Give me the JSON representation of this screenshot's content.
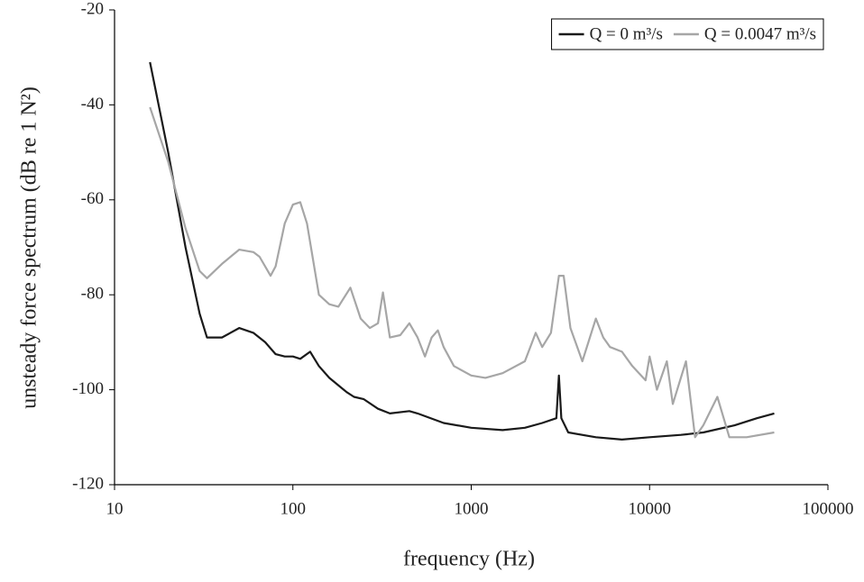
{
  "chart_data": {
    "type": "line",
    "x_label": "frequency (Hz)",
    "y_label": "unsteady force spectrum (dB re 1 N²)",
    "xscale": "log",
    "xlim": [
      10,
      100000
    ],
    "xticks": [
      10,
      100,
      1000,
      10000,
      100000
    ],
    "ylim": [
      -120,
      -20
    ],
    "yticks": [
      -120,
      -100,
      -80,
      -60,
      -40,
      -20
    ],
    "grid": false,
    "legend": "upper right",
    "series": [
      {
        "name": "Q = 0 m³/s",
        "color": "#1a1a1a",
        "x": [
          15.8,
          20,
          25,
          30,
          33,
          40,
          50,
          60,
          70,
          80,
          90,
          100,
          110,
          125,
          140,
          160,
          200,
          220,
          250,
          300,
          350,
          450,
          500,
          700,
          1000,
          1500,
          2000,
          2500,
          3000,
          3100,
          3200,
          3500,
          5000,
          7000,
          10000,
          15000,
          20000,
          30000,
          40000,
          50000
        ],
        "values": [
          -31,
          -50,
          -70,
          -84,
          -89,
          -89,
          -87,
          -88,
          -90,
          -92.5,
          -93,
          -93,
          -93.5,
          -92,
          -95,
          -97.5,
          -100.5,
          -101.5,
          -102,
          -104,
          -105,
          -104.5,
          -105,
          -107,
          -108,
          -108.5,
          -108,
          -107,
          -106,
          -97,
          -106,
          -109,
          -110,
          -110.5,
          -110,
          -109.5,
          -109,
          -107.5,
          -106,
          -105
        ]
      },
      {
        "name": "Q = 0.0047 m³/s",
        "color": "#a6a6a6",
        "x": [
          15.8,
          20,
          25,
          30,
          33,
          40,
          50,
          60,
          65,
          75,
          80,
          90,
          100,
          110,
          120,
          140,
          160,
          180,
          210,
          240,
          270,
          300,
          320,
          350,
          400,
          450,
          500,
          550,
          600,
          650,
          700,
          800,
          1000,
          1200,
          1500,
          2000,
          2300,
          2500,
          2800,
          3100,
          3300,
          3600,
          4200,
          5000,
          5500,
          6000,
          7000,
          8000,
          9500,
          10000,
          11000,
          12500,
          13500,
          16000,
          18000,
          20000,
          24000,
          28000,
          35000,
          50000
        ],
        "values": [
          -40.5,
          -52,
          -66,
          -75,
          -76.5,
          -73.5,
          -70.5,
          -71,
          -72,
          -76,
          -74,
          -65,
          -61,
          -60.5,
          -65,
          -80,
          -82,
          -82.5,
          -78.5,
          -85,
          -87,
          -86,
          -79.5,
          -89,
          -88.5,
          -86,
          -89,
          -93,
          -89,
          -87.5,
          -91,
          -95,
          -97,
          -97.5,
          -96.5,
          -94,
          -88,
          -91,
          -88,
          -76,
          -76,
          -87,
          -94,
          -85,
          -89,
          -91,
          -92,
          -95,
          -98,
          -93,
          -100,
          -94,
          -103,
          -94,
          -110,
          -107.5,
          -101.5,
          -110,
          -110,
          -109
        ]
      }
    ]
  }
}
